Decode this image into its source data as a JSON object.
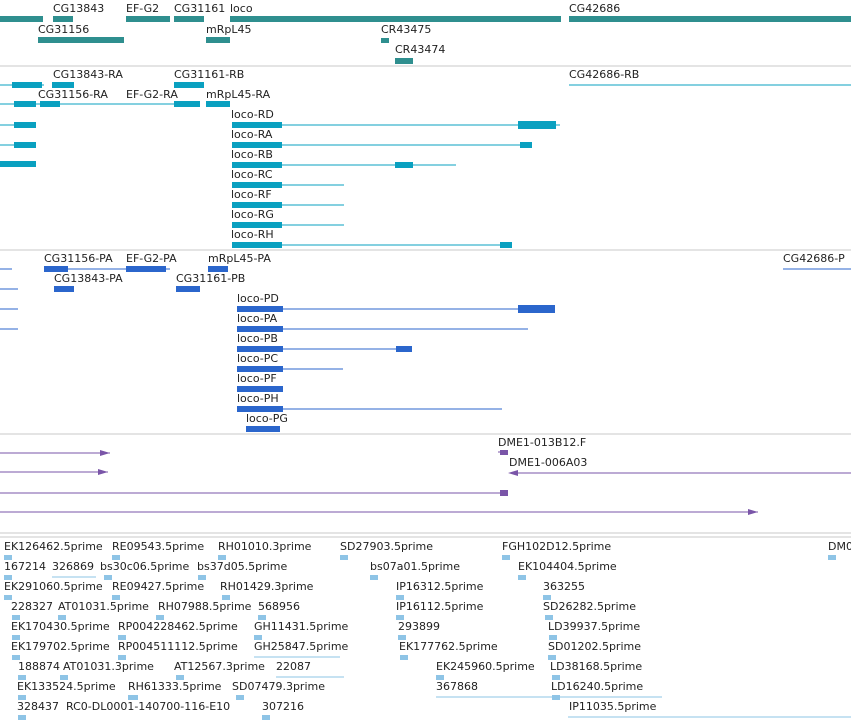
{
  "colors": {
    "genes": "#2f8f8f",
    "transcripts": "#0aa0c0",
    "proteins": "#2b66cc",
    "clones": "#7a55a8",
    "ests": "#8ec4e6",
    "separator": "#c8c8c8"
  },
  "gene_track": {
    "labels": [
      "CG13843",
      "EF-G2",
      "CG31161",
      "loco",
      "CG42686",
      "CG31156",
      "mRpL45",
      "CR43475",
      "CR43474"
    ]
  },
  "transcript_track": {
    "labels": [
      "CG13843-RA",
      "CG31161-RB",
      "CG42686-RB",
      "CG31156-RA",
      "EF-G2-RA",
      "mRpL45-RA",
      "loco-RD",
      "loco-RA",
      "loco-RB",
      "loco-RC",
      "loco-RF",
      "loco-RG",
      "loco-RH"
    ]
  },
  "protein_track": {
    "labels": [
      "CG31156-PA",
      "EF-G2-PA",
      "mRpL45-PA",
      "CG42686-P",
      "CG13843-PA",
      "CG31161-PB",
      "loco-PD",
      "loco-PA",
      "loco-PB",
      "loco-PC",
      "loco-PF",
      "loco-PH",
      "loco-PG"
    ]
  },
  "clone_track": {
    "labels": [
      "DME1-013B12.F",
      "DME1-006A03"
    ]
  },
  "est_track": {
    "labels": [
      "EK126462.5prime",
      "RE09543.5prime",
      "RH01010.3prime",
      "SD27903.5prime",
      "FGH102D12.5prime",
      "DM0",
      "167214",
      "326869",
      "bs30c06.5prime",
      "bs37d05.5prime",
      "bs07a01.5prime",
      "EK104404.5prime",
      "EK291060.5prime",
      "RE09427.5prime",
      "RH01429.3prime",
      "IP16312.5prime",
      "363255",
      "228327",
      "AT01031.5prime",
      "RH07988.5prime",
      "568956",
      "IP16112.5prime",
      "SD26282.5prime",
      "EK170430.5prime",
      "RP004228462.5prime",
      "GH11431.5prime",
      "293899",
      "LD39937.5prime",
      "EK179702.5prime",
      "RP004511112.5prime",
      "GH25847.5prime",
      "EK177762.5prime",
      "SD01202.5prime",
      "188874",
      "AT01031.3prime",
      "AT12567.3prime",
      "22087",
      "EK245960.5prime",
      "LD38168.5prime",
      "EK133524.5prime",
      "RH61333.5prime",
      "SD07479.3prime",
      "367868",
      "LD16240.5prime",
      "328437",
      "RC0-DL0001-140700-116-E10",
      "307216",
      "IP11035.5prime"
    ]
  }
}
